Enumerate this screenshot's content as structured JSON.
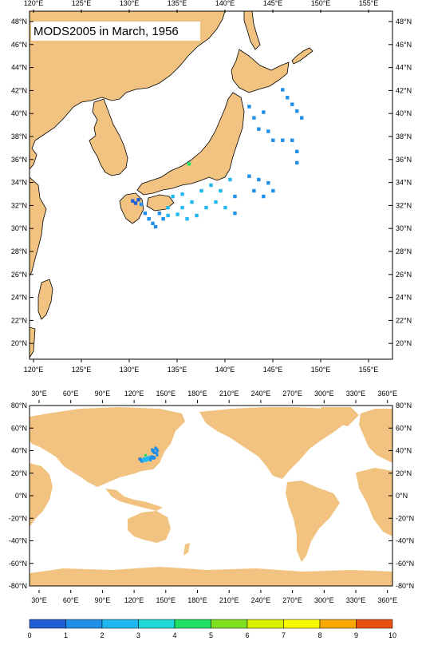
{
  "title": "MODS2005 in March, 1956",
  "colors": {
    "land": "#f2c380",
    "ocean": "#ffffff",
    "colorbar": [
      "#1f5fd6",
      "#1f8fe8",
      "#1fb8f0",
      "#1fd8d8",
      "#1fe060",
      "#7fe020",
      "#d8f000",
      "#f8f800",
      "#f8a800",
      "#e85010"
    ]
  },
  "top_map": {
    "x_ticks": [
      "120°E",
      "125°E",
      "130°E",
      "135°E",
      "140°E",
      "145°E",
      "150°E",
      "155°E"
    ],
    "y_ticks": [
      "48°N",
      "46°N",
      "44°N",
      "42°N",
      "40°N",
      "38°N",
      "36°N",
      "34°N",
      "32°N",
      "30°N",
      "28°N",
      "26°N",
      "24°N",
      "22°N",
      "20°N"
    ]
  },
  "bottom_map": {
    "x_ticks": [
      "30°E",
      "60°E",
      "90°E",
      "120°E",
      "150°E",
      "180°E",
      "210°E",
      "240°E",
      "270°E",
      "300°E",
      "330°E",
      "360°E"
    ],
    "y_ticks": [
      "80°N",
      "60°N",
      "40°N",
      "20°N",
      "0°N",
      "-20°N",
      "-40°N",
      "-60°N",
      "-80°N"
    ]
  },
  "colorbar": {
    "labels": [
      "0",
      "1",
      "2",
      "3",
      "4",
      "5",
      "6",
      "7",
      "8",
      "9",
      "10"
    ]
  },
  "observations": [
    {
      "lon": 129.3,
      "lat": 32.6,
      "v": 0.5
    },
    {
      "lon": 129.6,
      "lat": 32.4,
      "v": 0.5
    },
    {
      "lon": 129.9,
      "lat": 32.7,
      "v": 0.5
    },
    {
      "lon": 130.2,
      "lat": 32.3,
      "v": 1.5
    },
    {
      "lon": 130.6,
      "lat": 31.5,
      "v": 1.5
    },
    {
      "lon": 131.0,
      "lat": 31.0,
      "v": 1.5
    },
    {
      "lon": 131.4,
      "lat": 30.6,
      "v": 1.5
    },
    {
      "lon": 131.7,
      "lat": 30.3,
      "v": 1.5
    },
    {
      "lon": 132.1,
      "lat": 31.5,
      "v": 1.5
    },
    {
      "lon": 132.5,
      "lat": 31.0,
      "v": 1.5
    },
    {
      "lon": 133.0,
      "lat": 32.0,
      "v": 2.5
    },
    {
      "lon": 133.0,
      "lat": 31.3,
      "v": 2.5
    },
    {
      "lon": 133.5,
      "lat": 33.0,
      "v": 2.5
    },
    {
      "lon": 134.0,
      "lat": 31.4,
      "v": 2.5
    },
    {
      "lon": 134.5,
      "lat": 33.2,
      "v": 2.5
    },
    {
      "lon": 134.5,
      "lat": 32.0,
      "v": 2.5
    },
    {
      "lon": 135.0,
      "lat": 31.0,
      "v": 2.5
    },
    {
      "lon": 135.5,
      "lat": 32.5,
      "v": 2.5
    },
    {
      "lon": 136.0,
      "lat": 31.3,
      "v": 2.5
    },
    {
      "lon": 136.5,
      "lat": 33.5,
      "v": 2.5
    },
    {
      "lon": 137.0,
      "lat": 32.0,
      "v": 2.5
    },
    {
      "lon": 137.5,
      "lat": 34.0,
      "v": 2.5
    },
    {
      "lon": 138.0,
      "lat": 32.5,
      "v": 2.5
    },
    {
      "lon": 138.5,
      "lat": 33.5,
      "v": 2.5
    },
    {
      "lon": 139.0,
      "lat": 32.0,
      "v": 2.5
    },
    {
      "lon": 139.5,
      "lat": 34.5,
      "v": 2.5
    },
    {
      "lon": 140.0,
      "lat": 33.0,
      "v": 1.5
    },
    {
      "lon": 140.0,
      "lat": 31.5,
      "v": 1.5
    },
    {
      "lon": 141.5,
      "lat": 34.8,
      "v": 1.5
    },
    {
      "lon": 142.0,
      "lat": 33.5,
      "v": 1.5
    },
    {
      "lon": 142.5,
      "lat": 34.5,
      "v": 1.5
    },
    {
      "lon": 143.0,
      "lat": 33.0,
      "v": 1.5
    },
    {
      "lon": 143.5,
      "lat": 34.2,
      "v": 1.5
    },
    {
      "lon": 144.0,
      "lat": 33.5,
      "v": 1.5
    },
    {
      "lon": 141.5,
      "lat": 41.0,
      "v": 1.5
    },
    {
      "lon": 142.0,
      "lat": 40.0,
      "v": 1.5
    },
    {
      "lon": 142.5,
      "lat": 39.0,
      "v": 1.5
    },
    {
      "lon": 143.0,
      "lat": 40.5,
      "v": 1.5
    },
    {
      "lon": 143.5,
      "lat": 38.8,
      "v": 1.5
    },
    {
      "lon": 144.0,
      "lat": 38.0,
      "v": 1.5
    },
    {
      "lon": 145.0,
      "lat": 38.0,
      "v": 1.5
    },
    {
      "lon": 146.0,
      "lat": 38.0,
      "v": 1.5
    },
    {
      "lon": 146.5,
      "lat": 37.0,
      "v": 1.5
    },
    {
      "lon": 146.5,
      "lat": 36.0,
      "v": 1.5
    },
    {
      "lon": 145.0,
      "lat": 42.5,
      "v": 1.5
    },
    {
      "lon": 145.5,
      "lat": 41.8,
      "v": 1.5
    },
    {
      "lon": 146.0,
      "lat": 41.2,
      "v": 1.5
    },
    {
      "lon": 146.5,
      "lat": 40.6,
      "v": 1.5
    },
    {
      "lon": 147.0,
      "lat": 40.0,
      "v": 1.5
    },
    {
      "lon": 135.2,
      "lat": 35.9,
      "v": 4.5
    }
  ]
}
